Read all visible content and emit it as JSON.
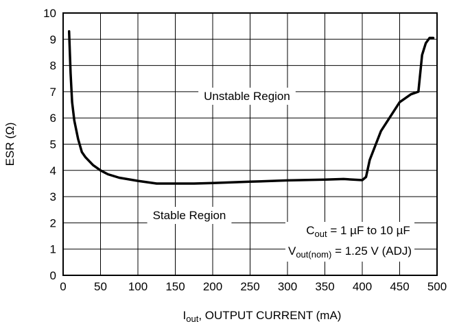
{
  "chart_data": {
    "type": "line",
    "xlabel": "I_out, OUTPUT CURRENT (mA)",
    "xlabel_parts": {
      "main": "I",
      "sub": "out",
      "rest": ", OUTPUT CURRENT (mA)"
    },
    "ylabel": "ESR (Ω)",
    "xlim": [
      0,
      500
    ],
    "ylim": [
      0,
      10
    ],
    "x_ticks": [
      0,
      50,
      100,
      150,
      200,
      250,
      300,
      350,
      400,
      450,
      500
    ],
    "y_ticks": [
      0,
      1,
      2,
      3,
      4,
      5,
      6,
      7,
      8,
      9,
      10
    ],
    "grid": true,
    "annotations": {
      "unstable": "Unstable Region",
      "stable": "Stable Region",
      "cout": {
        "main": "C",
        "sub": "out",
        "rest": " = 1 µF to 10 µF"
      },
      "vout": {
        "main": "V",
        "sub": "out(nom)",
        "rest": " = 1.25 V (ADJ)"
      }
    },
    "series": [
      {
        "x": [
          8,
          10,
          12,
          15,
          20,
          25,
          30,
          40,
          50,
          60,
          75,
          100,
          125,
          150,
          175,
          200,
          250,
          300,
          350,
          375,
          400,
          405,
          410,
          425,
          450,
          465,
          475,
          480,
          485,
          490,
          495
        ],
        "y": [
          9.3,
          7.7,
          6.6,
          5.9,
          5.2,
          4.7,
          4.5,
          4.2,
          4.0,
          3.85,
          3.72,
          3.6,
          3.5,
          3.5,
          3.5,
          3.52,
          3.57,
          3.62,
          3.65,
          3.67,
          3.63,
          3.75,
          4.4,
          5.5,
          6.6,
          6.9,
          7.0,
          8.4,
          8.85,
          9.05,
          9.05
        ]
      }
    ]
  }
}
